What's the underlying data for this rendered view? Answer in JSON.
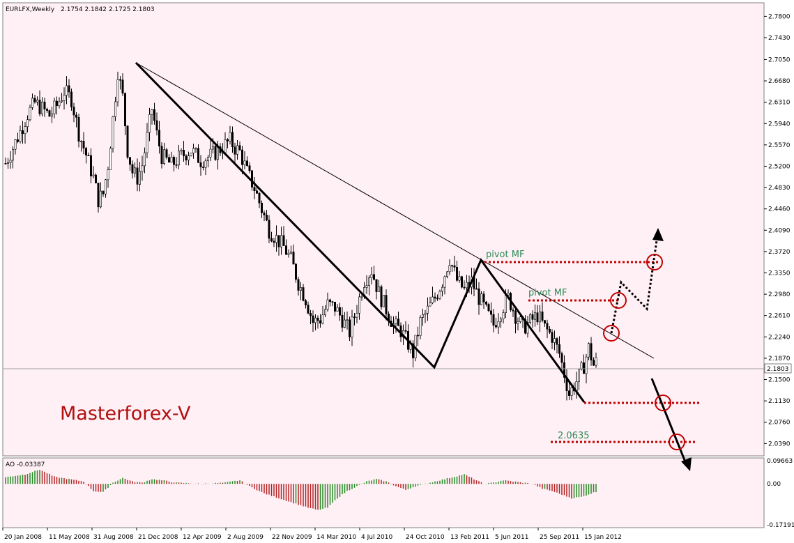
{
  "colors": {
    "background": "#fff0f5",
    "bull": "#000000",
    "bear": "#000000",
    "ao_up": "#228b22",
    "ao_down": "#b22222",
    "pivot_line": "#c00000",
    "circle": "#c00000",
    "label_green": "#2e8b57",
    "brand": "#b01010"
  },
  "header": {
    "title": "EURLFX,Weekly",
    "ohlc": "2.1754 2.1842 2.1725 2.1803"
  },
  "brand_text": "Masterforex-V",
  "ao_label": "AO -0.03387",
  "current_price": "2.1803",
  "chart_data": {
    "type": "candlestick",
    "symbol": "EURLFX",
    "timeframe": "Weekly",
    "open": 2.1754,
    "high": 2.1842,
    "low": 2.1725,
    "close": 2.1803,
    "ylim": [
      2.0225,
      2.7962
    ],
    "y_ticks": [
      "2.7800",
      "2.7430",
      "2.7050",
      "2.6680",
      "2.6310",
      "2.5940",
      "2.5570",
      "2.5200",
      "2.4830",
      "2.4460",
      "2.4090",
      "2.3720",
      "2.3350",
      "2.2980",
      "2.2610",
      "2.2240",
      "2.1870",
      "2.1500",
      "2.1130",
      "2.0760",
      "2.0390"
    ],
    "x_ticks": [
      "20 Jan 2008",
      "11 May 2008",
      "31 Aug 2008",
      "21 Dec 2008",
      "12 Apr 2009",
      "2 Aug 2009",
      "22 Nov 2009",
      "14 Mar 2010",
      "4 Jul 2010",
      "24 Oct 2010",
      "13 Feb 2011",
      "5 Jun 2011",
      "25 Sep 2011",
      "15 Jan 2012"
    ],
    "price_path": [
      [
        0,
        2.525
      ],
      [
        3,
        2.552
      ],
      [
        6,
        2.58
      ],
      [
        9,
        2.61
      ],
      [
        12,
        2.63
      ],
      [
        15,
        2.62
      ],
      [
        18,
        2.608
      ],
      [
        21,
        2.625
      ],
      [
        24,
        2.65
      ],
      [
        27,
        2.637
      ],
      [
        30,
        2.578
      ],
      [
        33,
        2.54
      ],
      [
        36,
        2.5
      ],
      [
        38,
        2.462
      ],
      [
        40,
        2.472
      ],
      [
        42,
        2.522
      ],
      [
        44,
        2.602
      ],
      [
        46,
        2.685
      ],
      [
        48,
        2.64
      ],
      [
        50,
        2.548
      ],
      [
        52,
        2.51
      ],
      [
        54,
        2.5
      ],
      [
        56,
        2.522
      ],
      [
        58,
        2.57
      ],
      [
        60,
        2.62
      ],
      [
        62,
        2.575
      ],
      [
        64,
        2.538
      ],
      [
        68,
        2.522
      ],
      [
        72,
        2.538
      ],
      [
        76,
        2.548
      ],
      [
        80,
        2.53
      ],
      [
        84,
        2.538
      ],
      [
        88,
        2.55
      ],
      [
        92,
        2.565
      ],
      [
        94,
        2.552
      ],
      [
        96,
        2.545
      ],
      [
        99,
        2.51
      ],
      [
        102,
        2.482
      ],
      [
        105,
        2.445
      ],
      [
        108,
        2.41
      ],
      [
        111,
        2.395
      ],
      [
        114,
        2.38
      ],
      [
        117,
        2.358
      ],
      [
        120,
        2.318
      ],
      [
        123,
        2.29
      ],
      [
        126,
        2.25
      ],
      [
        129,
        2.255
      ],
      [
        132,
        2.28
      ],
      [
        135,
        2.275
      ],
      [
        138,
        2.255
      ],
      [
        141,
        2.232
      ],
      [
        144,
        2.275
      ],
      [
        147,
        2.322
      ],
      [
        150,
        2.34
      ],
      [
        153,
        2.3
      ],
      [
        156,
        2.272
      ],
      [
        159,
        2.245
      ],
      [
        162,
        2.235
      ],
      [
        165,
        2.212
      ],
      [
        167,
        2.195
      ],
      [
        170,
        2.25
      ],
      [
        173,
        2.27
      ],
      [
        176,
        2.292
      ],
      [
        179,
        2.32
      ],
      [
        182,
        2.36
      ],
      [
        185,
        2.322
      ],
      [
        188,
        2.305
      ],
      [
        191,
        2.32
      ],
      [
        194,
        2.292
      ],
      [
        197,
        2.268
      ],
      [
        200,
        2.245
      ],
      [
        203,
        2.27
      ],
      [
        206,
        2.292
      ],
      [
        209,
        2.262
      ],
      [
        212,
        2.24
      ],
      [
        215,
        2.25
      ],
      [
        218,
        2.262
      ],
      [
        221,
        2.24
      ],
      [
        224,
        2.225
      ],
      [
        227,
        2.195
      ],
      [
        229,
        2.16
      ],
      [
        231,
        2.125
      ],
      [
        233,
        2.14
      ],
      [
        235,
        2.155
      ],
      [
        237,
        2.175
      ],
      [
        239,
        2.205
      ],
      [
        241,
        2.175
      ],
      [
        242,
        2.18
      ]
    ],
    "ao_path": [
      [
        0,
        0.028
      ],
      [
        8,
        0.04
      ],
      [
        14,
        0.06
      ],
      [
        20,
        0.03
      ],
      [
        26,
        0.02
      ],
      [
        32,
        0.01
      ],
      [
        36,
        -0.03
      ],
      [
        40,
        -0.035
      ],
      [
        44,
        0.005
      ],
      [
        48,
        0.025
      ],
      [
        52,
        0.01
      ],
      [
        56,
        0.005
      ],
      [
        60,
        0.02
      ],
      [
        64,
        0.015
      ],
      [
        70,
        0.005
      ],
      [
        80,
        0.0
      ],
      [
        90,
        0.005
      ],
      [
        96,
        0.015
      ],
      [
        100,
        -0.01
      ],
      [
        106,
        -0.04
      ],
      [
        112,
        -0.06
      ],
      [
        118,
        -0.08
      ],
      [
        124,
        -0.1
      ],
      [
        128,
        -0.11
      ],
      [
        132,
        -0.1
      ],
      [
        136,
        -0.06
      ],
      [
        140,
        -0.03
      ],
      [
        144,
        -0.01
      ],
      [
        148,
        0.01
      ],
      [
        152,
        0.02
      ],
      [
        156,
        0.01
      ],
      [
        160,
        -0.01
      ],
      [
        164,
        -0.025
      ],
      [
        168,
        -0.01
      ],
      [
        172,
        0.0
      ],
      [
        176,
        0.01
      ],
      [
        180,
        0.02
      ],
      [
        184,
        0.03
      ],
      [
        188,
        0.04
      ],
      [
        192,
        0.02
      ],
      [
        196,
        0.0
      ],
      [
        200,
        0.005
      ],
      [
        204,
        0.015
      ],
      [
        208,
        0.01
      ],
      [
        212,
        0.005
      ],
      [
        216,
        0.0
      ],
      [
        220,
        -0.02
      ],
      [
        224,
        -0.03
      ],
      [
        228,
        -0.045
      ],
      [
        232,
        -0.06
      ],
      [
        236,
        -0.055
      ],
      [
        240,
        -0.04
      ],
      [
        242,
        -0.034
      ]
    ],
    "ao_ylim": [
      -0.175,
      0.1
    ],
    "ao_ticks": [
      "0.09663",
      "0.00",
      "-0.17191"
    ],
    "annotations": [
      {
        "text": "pivot MF"
      },
      {
        "text": "pivot MF"
      },
      {
        "text": "2.0635"
      }
    ]
  }
}
